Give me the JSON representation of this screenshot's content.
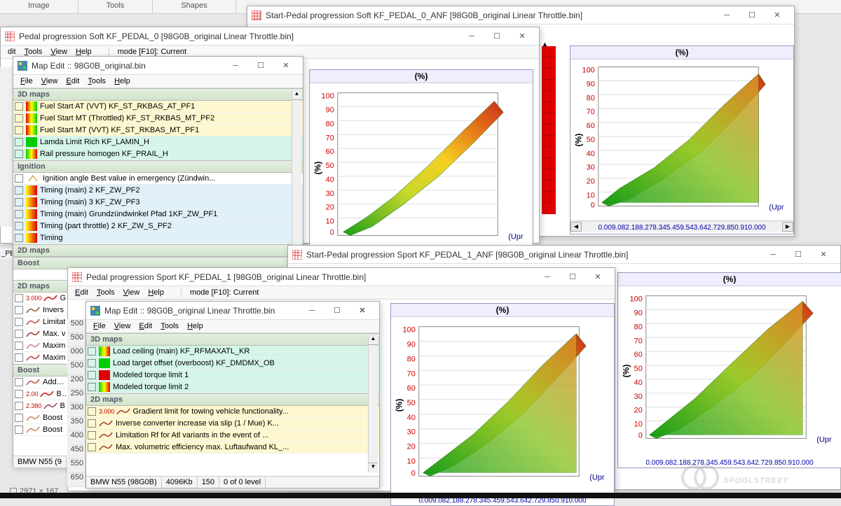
{
  "top_tabs": [
    "Image",
    "Tools",
    "Shapes"
  ],
  "ruler_vals": [
    "500",
    "500",
    "000",
    "500",
    "200",
    "250",
    "300",
    "350",
    "500",
    "550",
    "650"
  ],
  "ruler2_vals": [
    "500",
    "500",
    "000",
    "500",
    "200",
    "250",
    "300",
    "350",
    "400",
    "450",
    "550",
    "650"
  ],
  "tiny_title": "Start-Pedal progression Soft KF_PEDAL_0_ANF [98G0B_original Linear Throttle.bin]",
  "dim_status": "2971 × 167",
  "watermark": "SPOOLSTREET",
  "chart_titles": {
    "top_right_win": "Start-Pedal progression Soft KF_PEDAL_0_ANF [98G0B_original Linear Throttle.bin]",
    "bottom_right_win": "Start-Pedal progression Sport KF_PEDAL_1_ANF [98G0B_original Linear Throttle.bin]",
    "pedal_soft_win": "Pedal progression Soft KF_PEDAL_0 [98G0B_original Linear Throttle.bin]",
    "pedal_sport_win": "Pedal progression Sport KF_PEDAL_1 [98G0B_original Linear Throttle.bin]"
  },
  "chart": {
    "pct_label": "(%)",
    "y_ticks": [
      "100",
      "90",
      "80",
      "70",
      "60",
      "50",
      "40",
      "30",
      "20",
      "10",
      "0"
    ],
    "x_ticks": "0.009.082.188.278.345.459.543.642.729.850.910.000",
    "corner_label": "(Upr",
    "surface_colors": [
      "#1a9e1a",
      "#6ec22a",
      "#c6d82a",
      "#f6d022",
      "#f0a020",
      "#e06618",
      "#c83018"
    ],
    "bg": "#ffffff",
    "grid": "#d8d8d8",
    "axis": "#2020a0"
  },
  "mapedit1": {
    "title": "Map Edit :: 98G0B_original.bin",
    "menus": [
      "File",
      "View",
      "Edit",
      "Tools",
      "Help"
    ],
    "section_3d": "3D maps",
    "section_ignition": "Ignition",
    "section_2d": "2D maps",
    "section_boost": "Boost",
    "rows_3d": [
      {
        "label": "Fuel Start AT (VVT) KF_ST_RKBAS_AT_PF1",
        "bg": "bg-yellow",
        "sw": "grad-ryg"
      },
      {
        "label": "Fuel Start MT (Throttled) KF_ST_RKBAS_MT_PF2",
        "bg": "bg-yellow",
        "sw": "grad-ryg"
      },
      {
        "label": "Fuel Start MT (VVT) KF_ST_RKBAS_MT_PF1",
        "bg": "bg-yellow",
        "sw": "grad-ryg"
      },
      {
        "label": "Lamda Limit Rich KF_LAMIN_H",
        "bg": "bg-mint",
        "sw": "grad-g"
      },
      {
        "label": "Rail pressure homogen KF_PRAIL_H",
        "bg": "bg-mint",
        "sw": "grad-gyr"
      }
    ],
    "rows_ign": [
      {
        "label": "Ignition angle Best value in emergency (Zündwin...",
        "bg": "",
        "sw": ""
      },
      {
        "label": "Timing (main) 2 KF_ZW_PF2",
        "bg": "bg-blue",
        "sw": "grad-yr"
      },
      {
        "label": "Timing (main) 3 KF_ZW_PF3",
        "bg": "bg-blue",
        "sw": "grad-yr"
      },
      {
        "label": "Timing (main) Grundzündwinkel Pfad 1KF_ZW_PF1",
        "bg": "bg-blue",
        "sw": "grad-yr"
      },
      {
        "label": "Timing (part throttle) 2 KF_ZW_S_PF2",
        "bg": "bg-blue",
        "sw": "grad-yr"
      },
      {
        "label": "Timing",
        "bg": "bg-blue",
        "sw": "grad-yr"
      }
    ],
    "rows_2d": [
      {
        "label": "Gradie",
        "pre": "3.000",
        "color": "#c00000"
      },
      {
        "label": "Invers",
        "pre": "",
        "color": "#805030"
      },
      {
        "label": "Limitat",
        "pre": "",
        "color": "#c04040"
      },
      {
        "label": "Max. v",
        "pre": "",
        "color": "#a02020"
      },
      {
        "label": "Maxim",
        "pre": "",
        "color": "#c08080"
      },
      {
        "label": "Maxim",
        "pre": "",
        "color": "#c03030"
      }
    ],
    "rows_boost": [
      {
        "label": "Additic",
        "color": "#c04040"
      },
      {
        "label": "Boost",
        "pre": "2.00",
        "color": "#d00000"
      },
      {
        "label": "Boost",
        "pre": "2.380",
        "color": "#a03050"
      },
      {
        "label": "Boost",
        "color": "#c08060"
      },
      {
        "label": "Boost",
        "color": "#c08060"
      }
    ],
    "status": "BMW N55 (9"
  },
  "mapedit2": {
    "title": "Map Edit :: 98G0B_original Linear Throttle.bin",
    "menus": [
      "File",
      "View",
      "Edit",
      "Tools",
      "Help"
    ],
    "section_3d": "3D maps",
    "section_2d": "2D maps",
    "rows_3d": [
      {
        "label": "Load ceiling (main) KF_RFMAXATL_KR",
        "bg": "bg-mint",
        "sw": "grad-gyr"
      },
      {
        "label": "Load target offset (overboost) KF_DMDMX_OB",
        "bg": "bg-mint",
        "sw": "grad-g"
      },
      {
        "label": "Modeled torque limit 1",
        "bg": "bg-mint",
        "sw": "grad-r"
      },
      {
        "label": "Modeled torque limit 2",
        "bg": "bg-mint",
        "sw": "grad-gyr"
      }
    ],
    "rows_2d": [
      {
        "label": "Gradient limit for towing vehicle functionality...",
        "pre": "3.000",
        "bg": "bg-yellow"
      },
      {
        "label": "Inverse converter increase via slip (1 / Mue) K...",
        "bg": "bg-yellow"
      },
      {
        "label": "Limitation Rf for Atl variants in the event of ...",
        "bg": "bg-yellow"
      },
      {
        "label": "Max. volumetric efficiency max. Luftaufwand KL_...",
        "bg": "bg-yellow"
      }
    ],
    "status": [
      "BMW N55 (98G0B)",
      "4096Kb",
      "150",
      "0 of 0 level"
    ]
  },
  "pedal_menu": {
    "items": [
      "Edit",
      "Tools",
      "View",
      "Help"
    ],
    "mode": "mode [F10]: Current"
  },
  "upm_label": "(Upm)",
  "pe_label": "_PE"
}
